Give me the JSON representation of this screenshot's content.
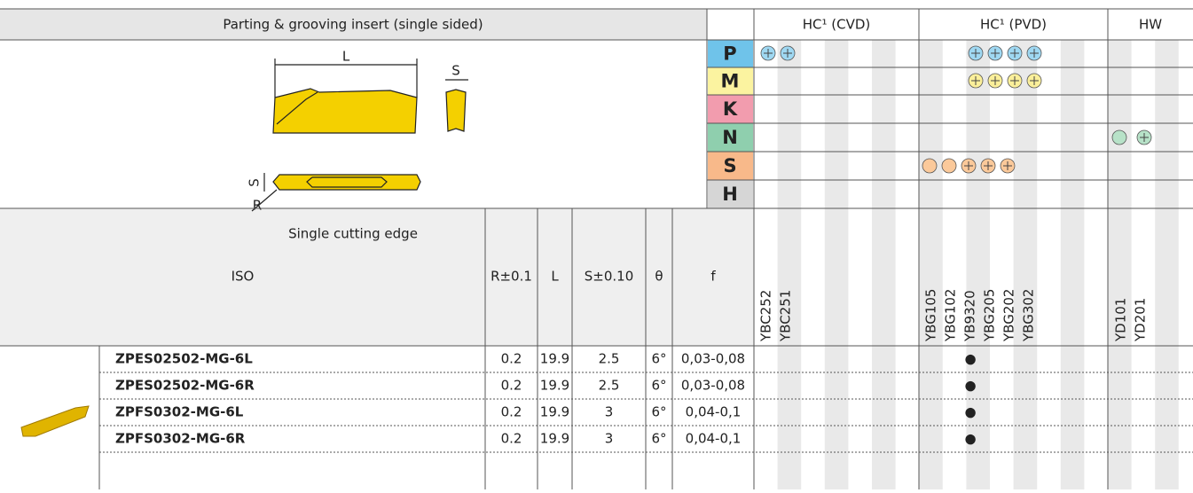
{
  "header": {
    "title": "Parting & grooving insert (single sided)",
    "groups": [
      "HC¹ (CVD)",
      "HC¹ (PVD)",
      "HW"
    ]
  },
  "drawing": {
    "length_label": "L",
    "width_label": "S",
    "side_width_label": "S",
    "radius_label": "R",
    "caption": "Single cutting edge"
  },
  "materials": [
    "P",
    "M",
    "K",
    "N",
    "S",
    "H"
  ],
  "columns": [
    "ISO",
    "R±0.1",
    "L",
    "S±0.10",
    "θ",
    "f"
  ],
  "grades": {
    "cvd": [
      "YBC252",
      "YBC251"
    ],
    "pvd": [
      "YBG105",
      "YBG102",
      "YB9320",
      "YBG205",
      "YBG202",
      "YBG302"
    ],
    "hw": [
      "YD101",
      "YD201"
    ]
  },
  "rows": [
    {
      "iso": "ZPES02502-MG-6L",
      "cells": [
        "0.2",
        "19.9",
        "2.5",
        "6°",
        "0,03-0,08"
      ],
      "mark": "●"
    },
    {
      "iso": "ZPES02502-MG-6R",
      "cells": [
        "0.2",
        "19.9",
        "2.5",
        "6°",
        "0,03-0,08"
      ],
      "mark": "●"
    },
    {
      "iso": "ZPFS0302-MG-6L",
      "cells": [
        "0.2",
        "19.9",
        "3",
        "6°",
        "0,04-0,1"
      ],
      "mark": "●"
    },
    {
      "iso": "ZPFS0302-MG-6R",
      "cells": [
        "0.2",
        "19.9",
        "3",
        "6°",
        "0,04-0,1"
      ],
      "mark": "●"
    }
  ]
}
